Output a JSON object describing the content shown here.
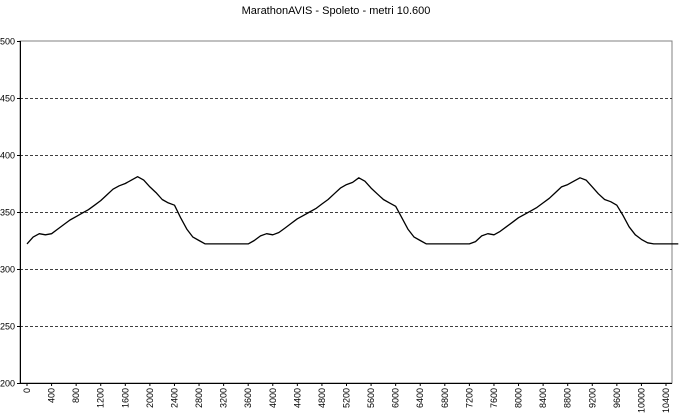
{
  "chart_data": {
    "type": "line",
    "title": "MarathonAVIS - Spoleto - metri 10.600",
    "xlabel": "",
    "ylabel": "",
    "xlim": [
      0,
      10600
    ],
    "ylim": [
      200,
      500
    ],
    "x_ticks": [
      "0",
      "400",
      "800",
      "1200",
      "1600",
      "2000",
      "2400",
      "2800",
      "3200",
      "3600",
      "4000",
      "4400",
      "4800",
      "5200",
      "5600",
      "6000",
      "6400",
      "6800",
      "7200",
      "7600",
      "8000",
      "8400",
      "8800",
      "9200",
      "9600",
      "10000",
      "10400"
    ],
    "y_ticks": [
      "500",
      "450",
      "400",
      "350",
      "300",
      "250",
      "200"
    ],
    "grid": "horizontal dashed",
    "legend": "none",
    "line_color": "#000000",
    "series": [
      {
        "values": [
          [
            0,
            322
          ],
          [
            100,
            328
          ],
          [
            200,
            331
          ],
          [
            300,
            330
          ],
          [
            400,
            331
          ],
          [
            500,
            335
          ],
          [
            600,
            339
          ],
          [
            700,
            343
          ],
          [
            800,
            346
          ],
          [
            900,
            349
          ],
          [
            1000,
            352
          ],
          [
            1100,
            356
          ],
          [
            1200,
            360
          ],
          [
            1300,
            365
          ],
          [
            1400,
            370
          ],
          [
            1500,
            373
          ],
          [
            1600,
            375
          ],
          [
            1700,
            378
          ],
          [
            1800,
            381
          ],
          [
            1900,
            378
          ],
          [
            2000,
            372
          ],
          [
            2100,
            367
          ],
          [
            2200,
            361
          ],
          [
            2300,
            358
          ],
          [
            2400,
            356
          ],
          [
            2500,
            345
          ],
          [
            2600,
            335
          ],
          [
            2700,
            328
          ],
          [
            2800,
            325
          ],
          [
            2900,
            322
          ],
          [
            3000,
            322
          ],
          [
            3100,
            322
          ],
          [
            3200,
            322
          ],
          [
            3300,
            322
          ],
          [
            3400,
            322
          ],
          [
            3500,
            322
          ],
          [
            3600,
            322
          ],
          [
            3700,
            325
          ],
          [
            3800,
            329
          ],
          [
            3900,
            331
          ],
          [
            4000,
            330
          ],
          [
            4100,
            332
          ],
          [
            4200,
            336
          ],
          [
            4300,
            340
          ],
          [
            4400,
            344
          ],
          [
            4500,
            347
          ],
          [
            4600,
            350
          ],
          [
            4700,
            353
          ],
          [
            4800,
            357
          ],
          [
            4900,
            361
          ],
          [
            5000,
            366
          ],
          [
            5100,
            371
          ],
          [
            5200,
            374
          ],
          [
            5300,
            376
          ],
          [
            5400,
            380
          ],
          [
            5500,
            377
          ],
          [
            5600,
            371
          ],
          [
            5700,
            366
          ],
          [
            5800,
            361
          ],
          [
            5900,
            358
          ],
          [
            6000,
            355
          ],
          [
            6100,
            345
          ],
          [
            6200,
            335
          ],
          [
            6300,
            328
          ],
          [
            6400,
            325
          ],
          [
            6500,
            322
          ],
          [
            6600,
            322
          ],
          [
            6700,
            322
          ],
          [
            6800,
            322
          ],
          [
            6900,
            322
          ],
          [
            7000,
            322
          ],
          [
            7100,
            322
          ],
          [
            7200,
            322
          ],
          [
            7300,
            324
          ],
          [
            7400,
            329
          ],
          [
            7500,
            331
          ],
          [
            7600,
            330
          ],
          [
            7700,
            333
          ],
          [
            7800,
            337
          ],
          [
            7900,
            341
          ],
          [
            8000,
            345
          ],
          [
            8100,
            348
          ],
          [
            8200,
            351
          ],
          [
            8300,
            354
          ],
          [
            8400,
            358
          ],
          [
            8500,
            362
          ],
          [
            8600,
            367
          ],
          [
            8700,
            372
          ],
          [
            8800,
            374
          ],
          [
            8900,
            377
          ],
          [
            9000,
            380
          ],
          [
            9100,
            378
          ],
          [
            9200,
            372
          ],
          [
            9300,
            366
          ],
          [
            9400,
            361
          ],
          [
            9500,
            359
          ],
          [
            9600,
            356
          ],
          [
            9700,
            347
          ],
          [
            9800,
            337
          ],
          [
            9900,
            330
          ],
          [
            10000,
            326
          ],
          [
            10100,
            323
          ],
          [
            10200,
            322
          ],
          [
            10300,
            322
          ],
          [
            10400,
            322
          ],
          [
            10500,
            322
          ],
          [
            10600,
            322
          ]
        ]
      }
    ]
  }
}
